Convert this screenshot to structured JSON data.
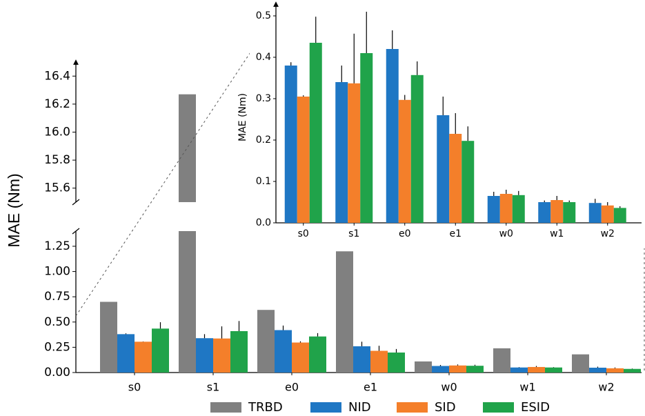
{
  "chart_data": [
    {
      "type": "broken-bar",
      "ylabel": "MAE (Nm)",
      "categories": [
        "s0",
        "s1",
        "e0",
        "e1",
        "w0",
        "w1",
        "w2"
      ],
      "ylim_lower": [
        0,
        1.4
      ],
      "yticks_lower": [
        {
          "value": 0,
          "label": "0.00"
        },
        {
          "value": 0.25,
          "label": "0.25"
        },
        {
          "value": 0.5,
          "label": "0.50"
        },
        {
          "value": 0.75,
          "label": "0.75"
        },
        {
          "value": 1,
          "label": "1.00"
        },
        {
          "value": 1.25,
          "label": "1.25"
        }
      ],
      "ylim_upper": [
        15.5,
        16.5
      ],
      "yticks_upper": [
        15.6,
        15.8,
        {
          "value": 16,
          "label": "16.0"
        },
        16.2,
        16.4
      ],
      "series": [
        {
          "name": "TRBD",
          "color": "#808080",
          "values": [
            0.7,
            16.27,
            0.62,
            1.2,
            0.11,
            0.24,
            0.18
          ]
        },
        {
          "name": "NID",
          "color": "#1f77c4",
          "values": [
            0.38,
            0.34,
            0.42,
            0.26,
            0.065,
            0.05,
            0.048
          ],
          "errors": [
            0.008,
            0.04,
            0.045,
            0.045,
            0.01,
            0.004,
            0.01
          ]
        },
        {
          "name": "SID",
          "color": "#f47f2a",
          "values": [
            0.305,
            0.337,
            0.297,
            0.215,
            0.07,
            0.055,
            0.042
          ],
          "errors": [
            0.003,
            0.12,
            0.012,
            0.05,
            0.01,
            0.01,
            0.008
          ]
        },
        {
          "name": "ESID",
          "color": "#20a34a",
          "values": [
            0.435,
            0.41,
            0.357,
            0.198,
            0.067,
            0.05,
            0.036
          ],
          "errors": [
            0.063,
            0.1,
            0.033,
            0.035,
            0.01,
            0.004,
            0.004
          ]
        }
      ]
    },
    {
      "type": "bar",
      "ylabel": "MAE (Nm)",
      "categories": [
        "s0",
        "s1",
        "e0",
        "e1",
        "w0",
        "w1",
        "w2"
      ],
      "ylim": [
        0,
        0.5
      ],
      "yticks": [
        {
          "value": 0,
          "label": "0.0"
        },
        0.1,
        0.2,
        0.3,
        0.4,
        0.5
      ],
      "series": [
        {
          "name": "NID",
          "color": "#1f77c4",
          "values": [
            0.38,
            0.34,
            0.42,
            0.26,
            0.065,
            0.05,
            0.048
          ],
          "errors": [
            0.008,
            0.04,
            0.045,
            0.045,
            0.01,
            0.004,
            0.01
          ]
        },
        {
          "name": "SID",
          "color": "#f47f2a",
          "values": [
            0.305,
            0.337,
            0.297,
            0.215,
            0.07,
            0.055,
            0.042
          ],
          "errors": [
            0.003,
            0.12,
            0.012,
            0.05,
            0.01,
            0.01,
            0.008
          ]
        },
        {
          "name": "ESID",
          "color": "#20a34a",
          "values": [
            0.435,
            0.41,
            0.357,
            0.198,
            0.067,
            0.05,
            0.036
          ],
          "errors": [
            0.063,
            0.1,
            0.033,
            0.035,
            0.01,
            0.004,
            0.004
          ]
        }
      ]
    }
  ]
}
